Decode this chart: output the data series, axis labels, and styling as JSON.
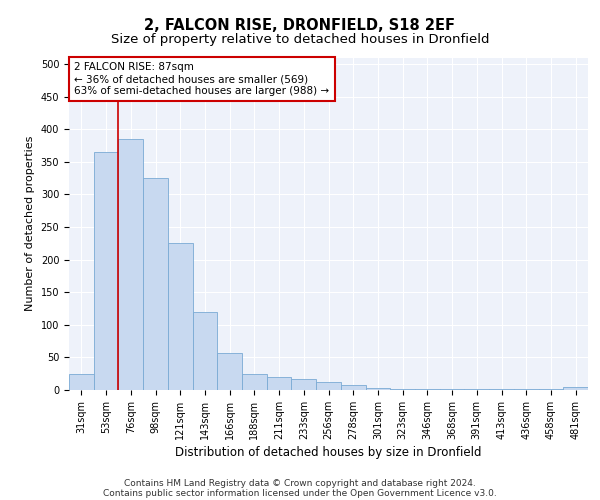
{
  "title": "2, FALCON RISE, DRONFIELD, S18 2EF",
  "subtitle": "Size of property relative to detached houses in Dronfield",
  "xlabel": "Distribution of detached houses by size in Dronfield",
  "ylabel": "Number of detached properties",
  "footnote1": "Contains HM Land Registry data © Crown copyright and database right 2024.",
  "footnote2": "Contains public sector information licensed under the Open Government Licence v3.0.",
  "bar_labels": [
    "31sqm",
    "53sqm",
    "76sqm",
    "98sqm",
    "121sqm",
    "143sqm",
    "166sqm",
    "188sqm",
    "211sqm",
    "233sqm",
    "256sqm",
    "278sqm",
    "301sqm",
    "323sqm",
    "346sqm",
    "368sqm",
    "391sqm",
    "413sqm",
    "436sqm",
    "458sqm",
    "481sqm"
  ],
  "bar_values": [
    25,
    365,
    385,
    325,
    225,
    120,
    57,
    25,
    20,
    17,
    13,
    7,
    3,
    2,
    1,
    1,
    1,
    1,
    1,
    1,
    4
  ],
  "bar_color": "#c8d9f0",
  "bar_edge_color": "#7aaad4",
  "annotation_box_text": "2 FALCON RISE: 87sqm\n← 36% of detached houses are smaller (569)\n63% of semi-detached houses are larger (988) →",
  "annotation_box_color": "#cc0000",
  "vline_x_index": 1.5,
  "vline_color": "#cc0000",
  "ylim": [
    0,
    510
  ],
  "yticks": [
    0,
    50,
    100,
    150,
    200,
    250,
    300,
    350,
    400,
    450,
    500
  ],
  "background_color": "#eef2fa",
  "grid_color": "#ffffff",
  "title_fontsize": 10.5,
  "subtitle_fontsize": 9.5,
  "xlabel_fontsize": 8.5,
  "ylabel_fontsize": 8,
  "tick_fontsize": 7,
  "annotation_fontsize": 7.5,
  "footnote_fontsize": 6.5
}
